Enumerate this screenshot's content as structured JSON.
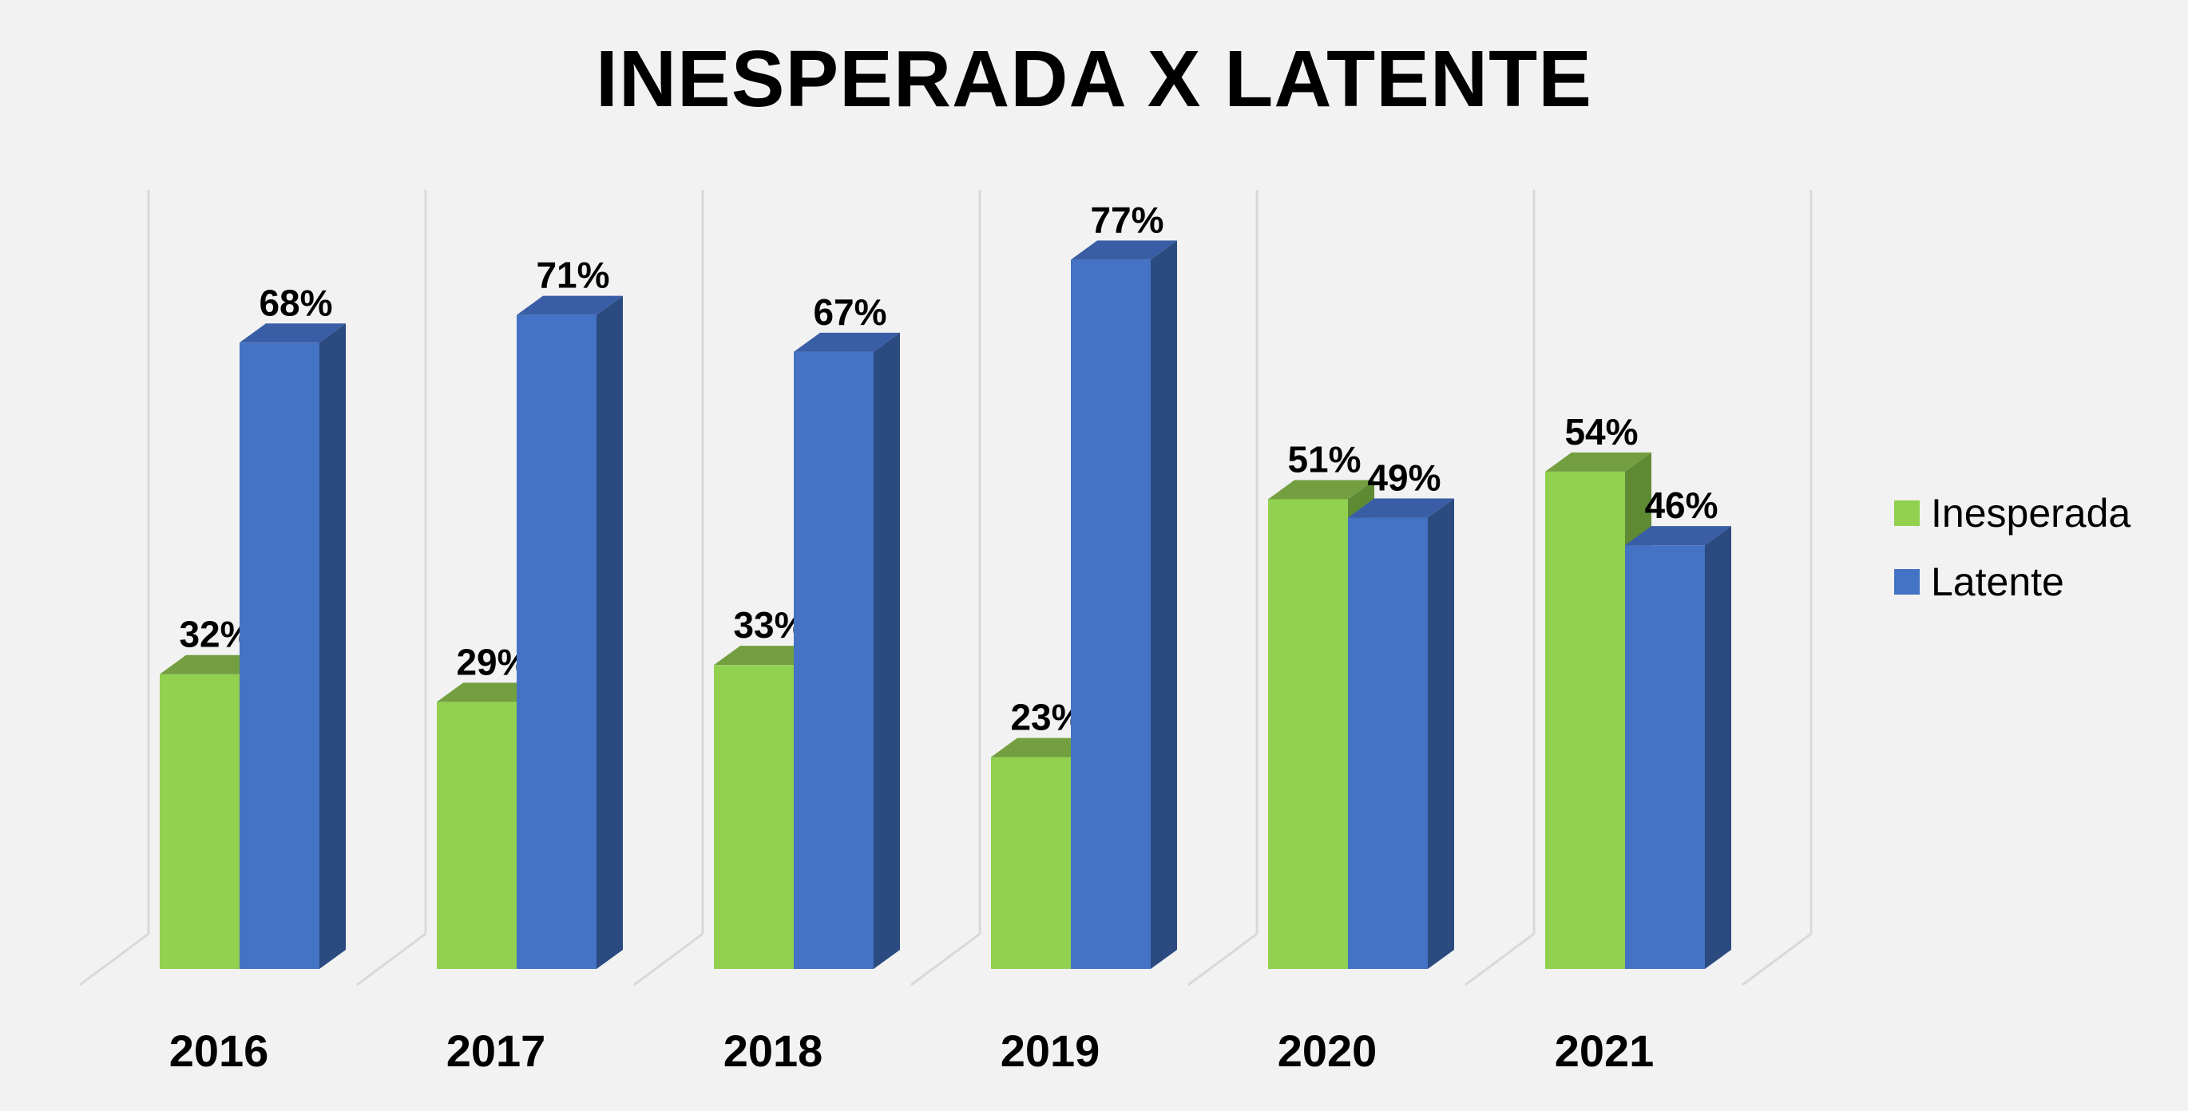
{
  "chart_data": {
    "type": "bar",
    "title": "INESPERADA X LATENTE",
    "categories": [
      "2016",
      "2017",
      "2018",
      "2019",
      "2020",
      "2021"
    ],
    "series": [
      {
        "name": "Inesperada",
        "values": [
          32,
          29,
          33,
          23,
          51,
          54
        ],
        "labels": [
          "32%",
          "29%",
          "33%",
          "23%",
          "51%",
          "54%"
        ]
      },
      {
        "name": "Latente",
        "values": [
          68,
          71,
          67,
          77,
          49,
          46
        ],
        "labels": [
          "68%",
          "71%",
          "67%",
          "77%",
          "49%",
          "46%"
        ]
      }
    ],
    "unit": "%",
    "ylim": [
      0,
      100
    ],
    "grid": true,
    "style": "3d-clustered-column",
    "legend_position": "right"
  },
  "colors": {
    "inesperada_front": "#92d050",
    "inesperada_top": "#739f41",
    "inesperada_side": "#5e8a34",
    "latente_front": "#4472c4",
    "latente_top": "#3a5ea6",
    "latente_side": "#2b4a80",
    "gridline": "#d9d9d9",
    "background": "#f2f2f2"
  }
}
